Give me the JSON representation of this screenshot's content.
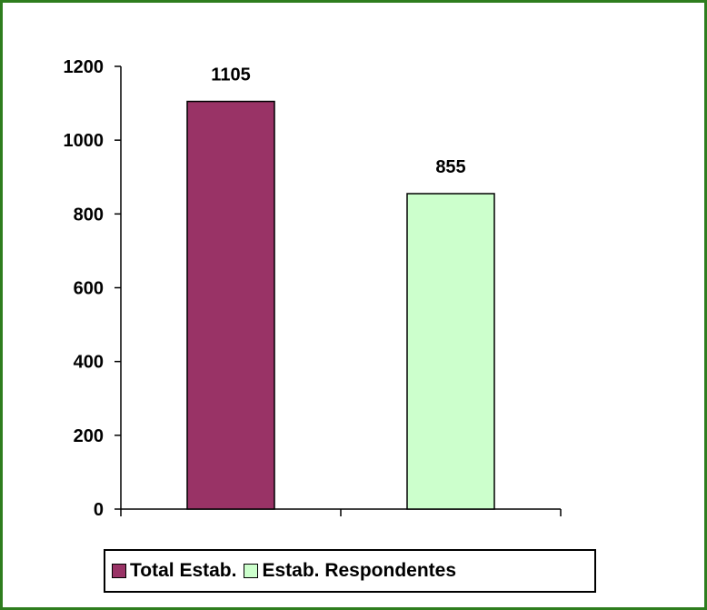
{
  "chart_data": {
    "type": "bar",
    "categories": [
      "Total Estab.",
      "Estab. Respondentes"
    ],
    "values": [
      1105,
      855
    ],
    "colors": [
      "#993366",
      "#CCFFCC"
    ],
    "data_labels": [
      "1105",
      "855"
    ],
    "ylim": [
      0,
      1200
    ],
    "yticks": [
      0,
      200,
      400,
      600,
      800,
      1000,
      1200
    ],
    "ytick_labels": [
      "0",
      "200",
      "400",
      "600",
      "800",
      "1000",
      "1200"
    ],
    "grid": false,
    "legend_position": "bottom",
    "legend": [
      {
        "label": "Total Estab.",
        "color": "#993366"
      },
      {
        "label": "Estab. Respondentes",
        "color": "#CCFFCC"
      }
    ],
    "frame_color": "#2E7D1E"
  }
}
